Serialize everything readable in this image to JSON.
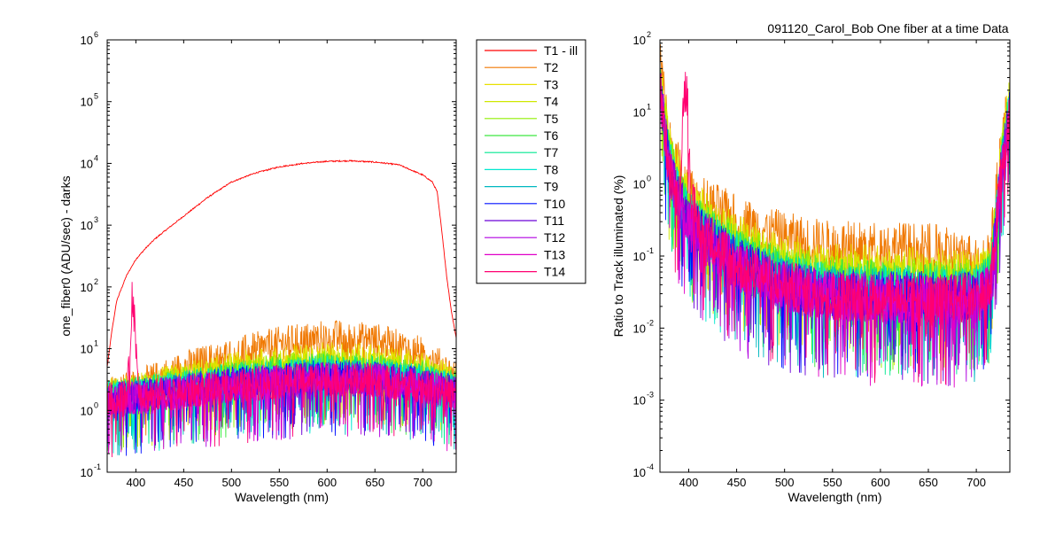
{
  "series_colors": {
    "T1 - ill": "#ff0000",
    "T2": "#f07800",
    "T3": "#e8e000",
    "T4": "#cfe800",
    "T5": "#90ef00",
    "T6": "#3de840",
    "T7": "#00e890",
    "T8": "#00e8d0",
    "T9": "#00b8c0",
    "T10": "#0010ff",
    "T11": "#6a00d8",
    "T12": "#b000e0",
    "T13": "#e000c8",
    "T14": "#ff0070"
  },
  "chart_data": [
    {
      "type": "line",
      "title": "",
      "xlabel": "Wavelength (nm)",
      "ylabel": "one_fiber0  (ADU/sec) - darks",
      "yscale": "log",
      "xlim": [
        370,
        735
      ],
      "ylim": [
        0.1,
        1000000
      ],
      "x_ticks": [
        400,
        450,
        500,
        550,
        600,
        650,
        700
      ],
      "y_ticks": [
        "10",
        "10",
        "10",
        "10",
        "10",
        "10",
        "10",
        "10"
      ],
      "y_tick_exponents": [
        "-1",
        "0",
        "1",
        "2",
        "3",
        "4",
        "5",
        "6"
      ],
      "legend": {
        "position": "outside-right",
        "entries": [
          "T1 - ill",
          "T2",
          "T3",
          "T4",
          "T5",
          "T6",
          "T7",
          "T8",
          "T9",
          "T10",
          "T11",
          "T12",
          "T13",
          "T14"
        ]
      },
      "series": [
        {
          "name": "T1 - ill",
          "x": [
            370,
            375,
            380,
            390,
            400,
            410,
            420,
            430,
            450,
            475,
            500,
            525,
            550,
            575,
            600,
            625,
            650,
            675,
            700,
            710,
            715,
            720,
            725,
            730,
            735
          ],
          "y": [
            5,
            20,
            60,
            150,
            280,
            420,
            600,
            800,
            1400,
            2800,
            5000,
            7000,
            8800,
            10000,
            10800,
            11000,
            10500,
            9500,
            6500,
            5000,
            3500,
            800,
            150,
            40,
            15
          ]
        },
        {
          "name": "T2",
          "x": [
            370,
            400,
            430,
            450,
            500,
            550,
            600,
            650,
            700,
            720,
            735
          ],
          "y": [
            2.2,
            2.6,
            4,
            5.3,
            8.6,
            13,
            17,
            15,
            9,
            5.5,
            3.5
          ]
        },
        {
          "name": "T3",
          "x": [
            370,
            400,
            450,
            500,
            550,
            600,
            650,
            700,
            735
          ],
          "y": [
            2,
            2.3,
            3.5,
            5,
            6.5,
            7.5,
            7,
            5,
            3
          ]
        },
        {
          "name": "T4",
          "x": [
            370,
            400,
            450,
            500,
            550,
            600,
            650,
            700,
            735
          ],
          "y": [
            1.9,
            2.2,
            3.1,
            4.2,
            5.5,
            6.2,
            5.8,
            4.3,
            2.8
          ]
        },
        {
          "name": "T5",
          "x": [
            370,
            400,
            450,
            500,
            550,
            600,
            650,
            700,
            735
          ],
          "y": [
            1.8,
            2.1,
            2.9,
            3.8,
            4.8,
            5.4,
            5,
            3.8,
            2.6
          ]
        },
        {
          "name": "T6",
          "x": [
            370,
            400,
            450,
            500,
            550,
            600,
            650,
            700,
            735
          ],
          "y": [
            1.8,
            2,
            2.7,
            3.5,
            4.3,
            4.9,
            4.6,
            3.5,
            2.5
          ]
        },
        {
          "name": "T7",
          "x": [
            370,
            400,
            450,
            500,
            550,
            600,
            650,
            700,
            735
          ],
          "y": [
            1.7,
            2,
            2.6,
            3.3,
            4,
            4.5,
            4.3,
            3.3,
            2.4
          ]
        },
        {
          "name": "T8",
          "x": [
            370,
            400,
            450,
            500,
            550,
            600,
            650,
            700,
            735
          ],
          "y": [
            1.7,
            1.9,
            2.5,
            3.1,
            3.8,
            4.2,
            4,
            3.1,
            2.3
          ]
        },
        {
          "name": "T9",
          "x": [
            370,
            400,
            450,
            500,
            550,
            600,
            650,
            700,
            735
          ],
          "y": [
            1.6,
            1.9,
            2.4,
            3,
            3.6,
            4,
            3.8,
            3,
            2.2
          ]
        },
        {
          "name": "T10",
          "x": [
            370,
            400,
            450,
            500,
            550,
            600,
            650,
            700,
            735
          ],
          "y": [
            1.6,
            1.8,
            2.3,
            2.9,
            3.4,
            3.8,
            3.6,
            2.9,
            2.1
          ]
        },
        {
          "name": "T11",
          "x": [
            370,
            400,
            450,
            500,
            550,
            600,
            650,
            700,
            735
          ],
          "y": [
            1.6,
            1.8,
            2.2,
            2.8,
            3.3,
            3.6,
            3.5,
            2.8,
            2.1
          ]
        },
        {
          "name": "T12",
          "x": [
            370,
            400,
            450,
            500,
            550,
            600,
            650,
            700,
            735
          ],
          "y": [
            1.5,
            1.7,
            2.2,
            2.7,
            3.2,
            3.5,
            3.4,
            2.7,
            2
          ]
        },
        {
          "name": "T13",
          "x": [
            370,
            400,
            450,
            500,
            550,
            600,
            650,
            700,
            735
          ],
          "y": [
            1.5,
            1.7,
            2.1,
            2.6,
            3.1,
            3.4,
            3.3,
            2.6,
            2
          ]
        },
        {
          "name": "T14",
          "x": [
            370,
            390,
            393,
            396,
            398,
            400,
            403,
            406,
            450,
            500,
            550,
            600,
            650,
            700,
            735
          ],
          "y": [
            1.6,
            1.9,
            5,
            70,
            60,
            12,
            3,
            1.8,
            2.1,
            2.6,
            3.1,
            3.4,
            3.3,
            2.6,
            2
          ]
        }
      ]
    },
    {
      "type": "line",
      "title": "091120_Carol_Bob  One fiber at a time Data",
      "xlabel": "Wavelength (nm)",
      "ylabel": "Ratio to Track illuminated (%)",
      "yscale": "log",
      "xlim": [
        370,
        735
      ],
      "ylim": [
        0.0001,
        100
      ],
      "x_ticks": [
        400,
        450,
        500,
        550,
        600,
        650,
        700
      ],
      "y_ticks": [
        "10",
        "10",
        "10",
        "10",
        "10",
        "10",
        "10"
      ],
      "y_tick_exponents": [
        "-4",
        "-3",
        "-2",
        "-1",
        "0",
        "1",
        "2"
      ],
      "series": [
        {
          "name": "T2",
          "x": [
            370,
            380,
            400,
            450,
            500,
            550,
            600,
            650,
            700,
            715,
            725,
            735
          ],
          "y": [
            60,
            4,
            0.8,
            0.35,
            0.2,
            0.15,
            0.15,
            0.14,
            0.1,
            0.13,
            3,
            20
          ]
        },
        {
          "name": "T3",
          "x": [
            370,
            380,
            400,
            450,
            500,
            550,
            600,
            650,
            700,
            715,
            725,
            735
          ],
          "y": [
            40,
            3,
            0.6,
            0.2,
            0.1,
            0.075,
            0.07,
            0.065,
            0.06,
            0.08,
            2,
            18
          ]
        },
        {
          "name": "T4",
          "x": [
            370,
            380,
            400,
            450,
            500,
            550,
            600,
            650,
            700,
            715,
            725,
            735
          ],
          "y": [
            35,
            2.6,
            0.5,
            0.16,
            0.08,
            0.06,
            0.055,
            0.052,
            0.05,
            0.07,
            1.8,
            16
          ]
        },
        {
          "name": "T5",
          "x": [
            370,
            380,
            400,
            450,
            500,
            550,
            600,
            650,
            700,
            715,
            725,
            735
          ],
          "y": [
            32,
            2.4,
            0.45,
            0.14,
            0.07,
            0.05,
            0.047,
            0.045,
            0.045,
            0.06,
            1.7,
            15
          ]
        },
        {
          "name": "T6",
          "x": [
            370,
            380,
            400,
            450,
            500,
            550,
            600,
            650,
            700,
            715,
            725,
            735
          ],
          "y": [
            30,
            2.2,
            0.4,
            0.12,
            0.06,
            0.045,
            0.042,
            0.04,
            0.04,
            0.055,
            1.6,
            14
          ]
        },
        {
          "name": "T7",
          "x": [
            370,
            380,
            400,
            450,
            500,
            550,
            600,
            650,
            700,
            715,
            725,
            735
          ],
          "y": [
            28,
            2,
            0.38,
            0.11,
            0.055,
            0.04,
            0.038,
            0.036,
            0.037,
            0.05,
            1.5,
            13
          ]
        },
        {
          "name": "T8",
          "x": [
            370,
            380,
            400,
            450,
            500,
            550,
            600,
            650,
            700,
            715,
            725,
            735
          ],
          "y": [
            26,
            1.9,
            0.35,
            0.1,
            0.05,
            0.037,
            0.035,
            0.033,
            0.034,
            0.048,
            1.4,
            12
          ]
        },
        {
          "name": "T9",
          "x": [
            370,
            380,
            400,
            450,
            500,
            550,
            600,
            650,
            700,
            715,
            725,
            735
          ],
          "y": [
            25,
            1.8,
            0.33,
            0.095,
            0.047,
            0.035,
            0.033,
            0.031,
            0.032,
            0.045,
            1.35,
            12
          ]
        },
        {
          "name": "T10",
          "x": [
            370,
            380,
            400,
            450,
            500,
            550,
            600,
            650,
            700,
            715,
            725,
            735
          ],
          "y": [
            24,
            1.7,
            0.32,
            0.09,
            0.045,
            0.033,
            0.031,
            0.03,
            0.03,
            0.043,
            1.3,
            11
          ]
        },
        {
          "name": "T11",
          "x": [
            370,
            380,
            400,
            450,
            500,
            550,
            600,
            650,
            700,
            715,
            725,
            735
          ],
          "y": [
            23,
            1.6,
            0.3,
            0.085,
            0.043,
            0.031,
            0.03,
            0.028,
            0.029,
            0.041,
            1.25,
            11
          ]
        },
        {
          "name": "T12",
          "x": [
            370,
            380,
            400,
            450,
            500,
            550,
            600,
            650,
            700,
            715,
            725,
            735
          ],
          "y": [
            22,
            1.55,
            0.29,
            0.08,
            0.041,
            0.03,
            0.028,
            0.027,
            0.028,
            0.04,
            1.2,
            10
          ]
        },
        {
          "name": "T13",
          "x": [
            370,
            380,
            400,
            450,
            500,
            550,
            600,
            650,
            700,
            715,
            725,
            735
          ],
          "y": [
            21,
            1.5,
            0.28,
            0.078,
            0.04,
            0.029,
            0.027,
            0.026,
            0.027,
            0.039,
            1.15,
            10
          ]
        },
        {
          "name": "T14",
          "x": [
            370,
            380,
            390,
            395,
            398,
            400,
            403,
            410,
            450,
            500,
            550,
            600,
            650,
            700,
            715,
            725,
            735
          ],
          "y": [
            22,
            1.6,
            0.6,
            20,
            25,
            6,
            0.6,
            0.3,
            0.08,
            0.042,
            0.031,
            0.029,
            0.028,
            0.029,
            0.04,
            1.2,
            10
          ]
        }
      ]
    }
  ]
}
